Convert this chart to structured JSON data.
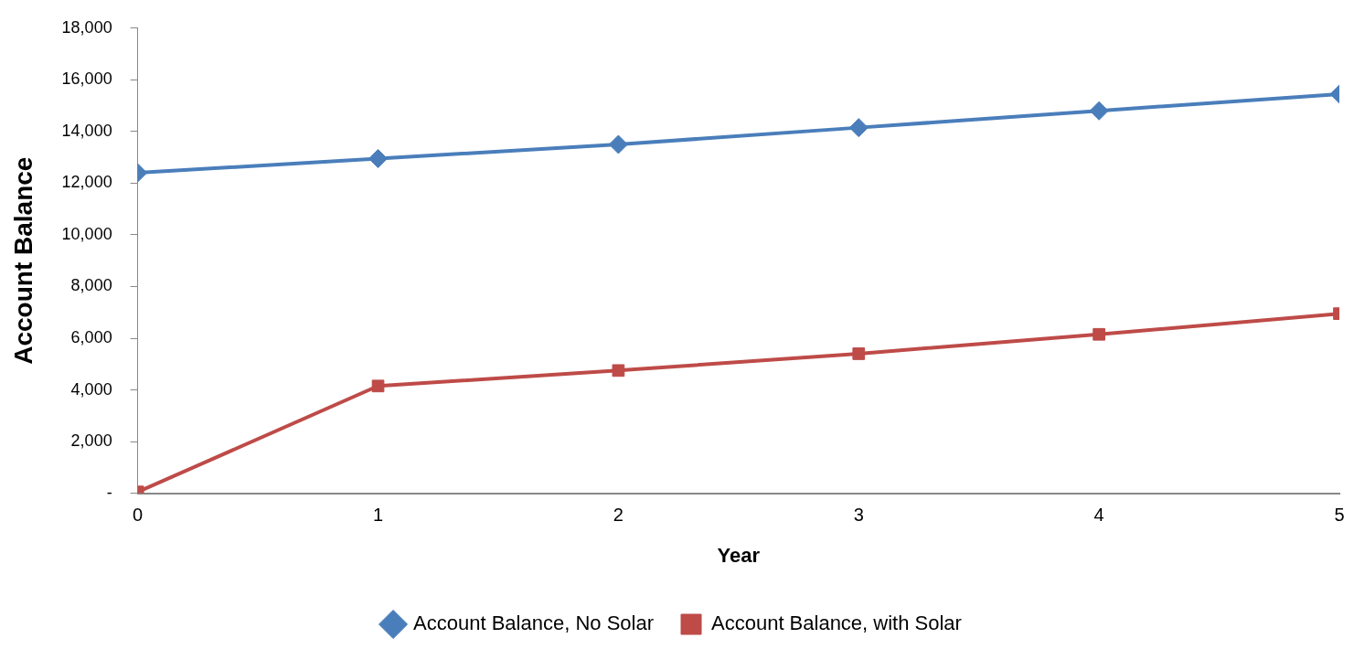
{
  "chart_data": {
    "type": "line",
    "xlabel": "Year",
    "ylabel": "Account Balance",
    "x": [
      0,
      1,
      2,
      3,
      4,
      5
    ],
    "xlim": [
      0,
      5
    ],
    "xticks": [
      0,
      1,
      2,
      3,
      4,
      5
    ],
    "ylim": [
      0,
      18000
    ],
    "yticks": [
      {
        "value": 0,
        "label": "-"
      },
      {
        "value": 2000,
        "label": "2,000"
      },
      {
        "value": 4000,
        "label": "4,000"
      },
      {
        "value": 6000,
        "label": "6,000"
      },
      {
        "value": 8000,
        "label": "8,000"
      },
      {
        "value": 10000,
        "label": "10,000"
      },
      {
        "value": 12000,
        "label": "12,000"
      },
      {
        "value": 14000,
        "label": "14,000"
      },
      {
        "value": 16000,
        "label": "16,000"
      },
      {
        "value": 18000,
        "label": "18,000"
      }
    ],
    "series": [
      {
        "name": "Account Balance, No Solar",
        "color": "#4a7ebb",
        "marker": "diamond",
        "values": [
          12400,
          12950,
          13500,
          14150,
          14800,
          15450
        ]
      },
      {
        "name": "Account Balance, with Solar",
        "color": "#be4b48",
        "marker": "square",
        "values": [
          50,
          4150,
          4750,
          5400,
          6150,
          6950
        ]
      }
    ],
    "grid": false,
    "legend": "bottom"
  }
}
